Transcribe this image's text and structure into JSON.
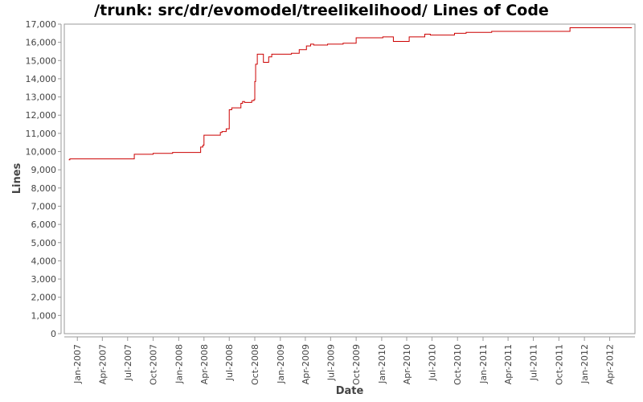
{
  "chart_data": {
    "type": "line",
    "title": "/trunk: src/dr/evomodel/treelikelihood/ Lines of Code",
    "xlabel": "Date",
    "ylabel": "Lines",
    "ylim": [
      0,
      17000
    ],
    "xlim": [
      "2006-11-15",
      "2012-07-01"
    ],
    "y_ticks": [
      0,
      1000,
      2000,
      3000,
      4000,
      5000,
      6000,
      7000,
      8000,
      9000,
      10000,
      11000,
      12000,
      13000,
      14000,
      15000,
      16000,
      17000
    ],
    "x_ticks": [
      {
        "date": "2007-01-01",
        "label": "Jan-2007"
      },
      {
        "date": "2007-04-01",
        "label": "Apr-2007"
      },
      {
        "date": "2007-07-01",
        "label": "Jul-2007"
      },
      {
        "date": "2007-10-01",
        "label": "Oct-2007"
      },
      {
        "date": "2008-01-01",
        "label": "Jan-2008"
      },
      {
        "date": "2008-04-01",
        "label": "Apr-2008"
      },
      {
        "date": "2008-07-01",
        "label": "Jul-2008"
      },
      {
        "date": "2008-10-01",
        "label": "Oct-2008"
      },
      {
        "date": "2009-01-01",
        "label": "Jan-2009"
      },
      {
        "date": "2009-04-01",
        "label": "Apr-2009"
      },
      {
        "date": "2009-07-01",
        "label": "Jul-2009"
      },
      {
        "date": "2009-10-01",
        "label": "Oct-2009"
      },
      {
        "date": "2010-01-01",
        "label": "Jan-2010"
      },
      {
        "date": "2010-04-01",
        "label": "Apr-2010"
      },
      {
        "date": "2010-07-01",
        "label": "Jul-2010"
      },
      {
        "date": "2010-10-01",
        "label": "Oct-2010"
      },
      {
        "date": "2011-01-01",
        "label": "Jan-2011"
      },
      {
        "date": "2011-04-01",
        "label": "Apr-2011"
      },
      {
        "date": "2011-07-01",
        "label": "Jul-2011"
      },
      {
        "date": "2011-10-01",
        "label": "Oct-2011"
      },
      {
        "date": "2012-01-01",
        "label": "Jan-2012"
      },
      {
        "date": "2012-04-01",
        "label": "Apr-2012"
      }
    ],
    "grid": false,
    "legend": "none",
    "series": [
      {
        "color": "#cc0000",
        "step": true,
        "points": [
          [
            "2006-12-01",
            9550
          ],
          [
            "2006-12-05",
            9600
          ],
          [
            "2007-07-25",
            9850
          ],
          [
            "2007-10-01",
            9900
          ],
          [
            "2007-12-10",
            9950
          ],
          [
            "2008-03-20",
            10250
          ],
          [
            "2008-03-28",
            10350
          ],
          [
            "2008-04-01",
            10900
          ],
          [
            "2008-05-30",
            11050
          ],
          [
            "2008-06-05",
            11100
          ],
          [
            "2008-06-20",
            11250
          ],
          [
            "2008-07-01",
            12300
          ],
          [
            "2008-07-10",
            12400
          ],
          [
            "2008-08-12",
            12650
          ],
          [
            "2008-08-18",
            12750
          ],
          [
            "2008-08-25",
            12700
          ],
          [
            "2008-09-20",
            12800
          ],
          [
            "2008-09-28",
            12850
          ],
          [
            "2008-10-01",
            13850
          ],
          [
            "2008-10-04",
            14800
          ],
          [
            "2008-10-10",
            15350
          ],
          [
            "2008-11-01",
            14900
          ],
          [
            "2008-11-20",
            15200
          ],
          [
            "2008-12-01",
            15350
          ],
          [
            "2009-02-10",
            15400
          ],
          [
            "2009-03-10",
            15600
          ],
          [
            "2009-04-05",
            15800
          ],
          [
            "2009-04-20",
            15900
          ],
          [
            "2009-05-01",
            15850
          ],
          [
            "2009-06-20",
            15900
          ],
          [
            "2009-08-15",
            15950
          ],
          [
            "2009-10-01",
            16250
          ],
          [
            "2010-01-05",
            16300
          ],
          [
            "2010-02-12",
            16050
          ],
          [
            "2010-04-10",
            16300
          ],
          [
            "2010-06-05",
            16450
          ],
          [
            "2010-06-25",
            16400
          ],
          [
            "2010-09-20",
            16500
          ],
          [
            "2010-11-01",
            16550
          ],
          [
            "2011-02-01",
            16600
          ],
          [
            "2011-11-10",
            16800
          ],
          [
            "2012-06-20",
            16800
          ]
        ]
      }
    ]
  }
}
